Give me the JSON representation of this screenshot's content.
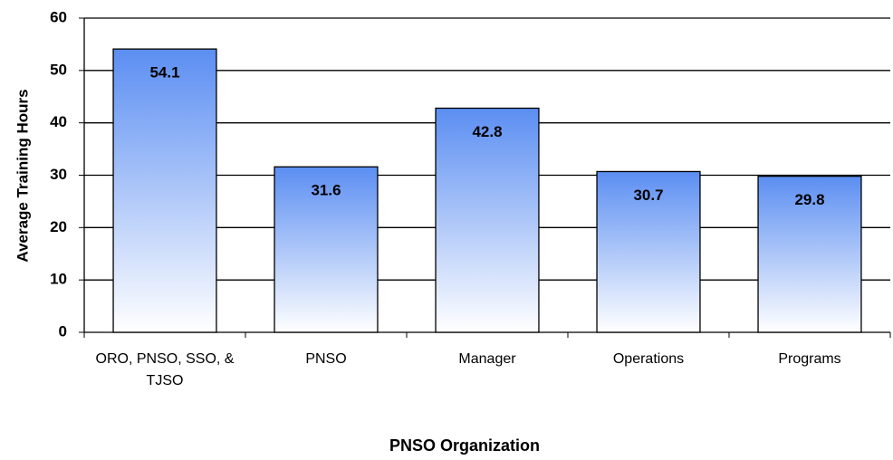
{
  "chart_data": {
    "type": "bar",
    "categories": [
      "ORO, PNSO, SSO, & TJSO",
      "PNSO",
      "Manager",
      "Operations",
      "Programs"
    ],
    "values": [
      54.1,
      31.6,
      42.8,
      30.7,
      29.8
    ],
    "color": "#5b8ef2",
    "ylim": [
      0,
      60
    ],
    "yticks": [
      0,
      10,
      20,
      30,
      40,
      50,
      60
    ],
    "grid": true,
    "y_label": "Average Training Hours",
    "x_label": "PNSO Organization"
  }
}
